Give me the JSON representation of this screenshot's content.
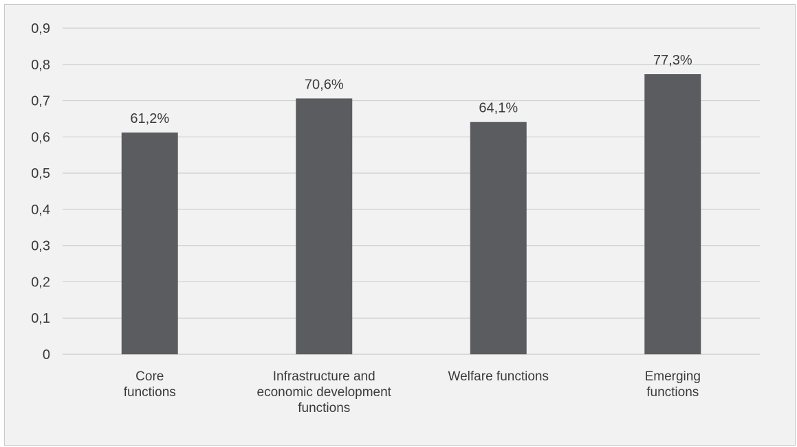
{
  "chart_data": {
    "type": "bar",
    "title": "",
    "xlabel": "",
    "ylabel": "",
    "categories": [
      [
        "Core",
        "functions"
      ],
      [
        "Infrastructure and",
        "economic development",
        "functions"
      ],
      [
        "Welfare functions"
      ],
      [
        "Emerging",
        "functions"
      ]
    ],
    "values": [
      0.612,
      0.706,
      0.641,
      0.773
    ],
    "data_labels": [
      "61,2%",
      "70,6%",
      "64,1%",
      "77,3%"
    ],
    "ylim": [
      0,
      0.9
    ],
    "yticks": [
      0,
      0.1,
      0.2,
      0.3,
      0.4,
      0.5,
      0.6,
      0.7,
      0.8,
      0.9
    ],
    "ytick_labels": [
      "0",
      "0,1",
      "0,2",
      "0,3",
      "0,4",
      "0,5",
      "0,6",
      "0,7",
      "0,8",
      "0,9"
    ],
    "grid": true,
    "legend": "none",
    "bar_color": "#5b5c5f",
    "grid_color": "#cfcfcf",
    "background_color": "#f2f2f2"
  }
}
